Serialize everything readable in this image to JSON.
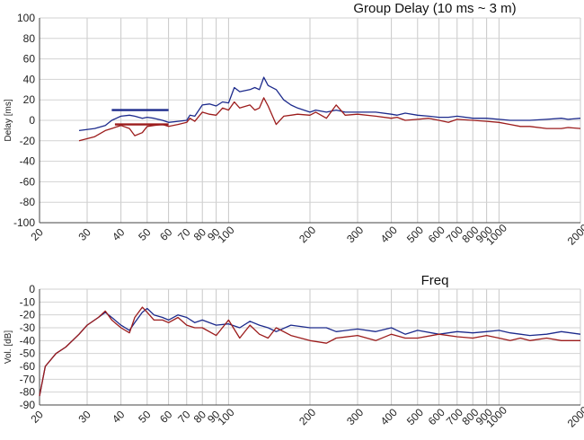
{
  "chart_data": [
    {
      "type": "line",
      "title": "Group Delay (10 ms ~ 3 m)",
      "xlabel": "",
      "ylabel": "Delay [ms]",
      "xscale": "log",
      "xlim": [
        20,
        2000
      ],
      "ylim": [
        -100,
        100
      ],
      "yticks": [
        100,
        80,
        60,
        40,
        20,
        0,
        -20,
        -40,
        -60,
        -80,
        -100
      ],
      "xticks": [
        20,
        30,
        40,
        50,
        60,
        70,
        80,
        90,
        100,
        200,
        300,
        400,
        500,
        600,
        700,
        800,
        900,
        1000,
        2000
      ],
      "grid": true,
      "colors": {
        "blue": "#1c2a8c",
        "red": "#9c1c1c"
      },
      "series": [
        {
          "color": "blue",
          "x": [
            28,
            32,
            35,
            37,
            40,
            43,
            45,
            48,
            50,
            53,
            57,
            60,
            65,
            70,
            72,
            75,
            80,
            85,
            90,
            95,
            100,
            105,
            110,
            120,
            125,
            130,
            135,
            140,
            150,
            160,
            170,
            180,
            200,
            210,
            230,
            250,
            270,
            300,
            350,
            400,
            420,
            450,
            500,
            550,
            600,
            650,
            700,
            800,
            900,
            1000,
            1100,
            1200,
            1300,
            1500,
            1700,
            1800,
            2000
          ],
          "y": [
            -10,
            -8,
            -5,
            0,
            4,
            5,
            4,
            2,
            3,
            2,
            0,
            -2,
            -1,
            0,
            5,
            4,
            15,
            16,
            14,
            18,
            17,
            32,
            28,
            30,
            32,
            30,
            42,
            34,
            30,
            20,
            15,
            12,
            8,
            10,
            8,
            10,
            8,
            8,
            8,
            6,
            5,
            7,
            5,
            4,
            3,
            3,
            4,
            2,
            2,
            1,
            0,
            0,
            0,
            1,
            2,
            1,
            2
          ]
        },
        {
          "color": "blue",
          "x": [
            37,
            60
          ],
          "y": [
            10,
            10
          ]
        },
        {
          "color": "red",
          "x": [
            28,
            32,
            35,
            37,
            40,
            43,
            45,
            48,
            50,
            53,
            57,
            60,
            65,
            70,
            72,
            75,
            80,
            85,
            90,
            95,
            100,
            105,
            110,
            120,
            125,
            130,
            135,
            140,
            150,
            160,
            170,
            180,
            200,
            210,
            230,
            250,
            270,
            300,
            350,
            400,
            420,
            450,
            500,
            550,
            600,
            650,
            700,
            800,
            900,
            1000,
            1100,
            1200,
            1300,
            1500,
            1700,
            1800,
            2000
          ],
          "y": [
            -20,
            -16,
            -10,
            -8,
            -5,
            -8,
            -15,
            -12,
            -6,
            -5,
            -4,
            -6,
            -4,
            -2,
            2,
            -1,
            8,
            6,
            5,
            12,
            10,
            18,
            12,
            15,
            10,
            12,
            22,
            14,
            -4,
            4,
            5,
            6,
            5,
            8,
            2,
            15,
            5,
            6,
            4,
            2,
            3,
            0,
            1,
            2,
            0,
            -2,
            1,
            0,
            -1,
            -2,
            -4,
            -6,
            -6,
            -8,
            -8,
            -7,
            -8
          ]
        },
        {
          "color": "red",
          "x": [
            38,
            60
          ],
          "y": [
            -4,
            -4
          ]
        }
      ]
    },
    {
      "type": "line",
      "title": "Freq",
      "xlabel": "",
      "ylabel": "Vol. [dB]",
      "xscale": "log",
      "xlim": [
        20,
        2000
      ],
      "ylim": [
        -90,
        0
      ],
      "yticks": [
        0,
        -10,
        -20,
        -30,
        -40,
        -50,
        -60,
        -70,
        -80,
        -90
      ],
      "xticks": [
        20,
        30,
        40,
        50,
        60,
        70,
        80,
        90,
        100,
        200,
        300,
        400,
        500,
        600,
        700,
        800,
        900,
        1000,
        2000
      ],
      "grid": true,
      "colors": {
        "blue": "#1c2a8c",
        "red": "#9c1c1c"
      },
      "series": [
        {
          "color": "blue",
          "x": [
            20,
            21,
            23,
            25,
            28,
            30,
            33,
            35,
            37,
            40,
            43,
            45,
            48,
            50,
            53,
            57,
            60,
            65,
            70,
            75,
            80,
            90,
            100,
            110,
            120,
            130,
            140,
            150,
            170,
            200,
            230,
            250,
            300,
            350,
            400,
            450,
            500,
            600,
            700,
            800,
            900,
            1000,
            1100,
            1200,
            1300,
            1500,
            1700,
            2000
          ],
          "y": [
            -83,
            -60,
            -50,
            -45,
            -35,
            -28,
            -22,
            -18,
            -22,
            -28,
            -32,
            -26,
            -18,
            -15,
            -20,
            -22,
            -24,
            -20,
            -22,
            -26,
            -24,
            -28,
            -27,
            -30,
            -25,
            -28,
            -30,
            -33,
            -28,
            -30,
            -30,
            -33,
            -31,
            -33,
            -30,
            -35,
            -32,
            -35,
            -33,
            -34,
            -33,
            -32,
            -34,
            -35,
            -36,
            -35,
            -33,
            -35
          ]
        },
        {
          "color": "red",
          "x": [
            20,
            21,
            23,
            25,
            28,
            30,
            33,
            35,
            37,
            40,
            43,
            45,
            48,
            50,
            53,
            57,
            60,
            65,
            70,
            75,
            80,
            90,
            100,
            110,
            120,
            130,
            140,
            150,
            170,
            200,
            230,
            250,
            300,
            350,
            400,
            450,
            500,
            600,
            700,
            800,
            900,
            1000,
            1100,
            1200,
            1300,
            1500,
            1700,
            2000
          ],
          "y": [
            -83,
            -60,
            -50,
            -45,
            -35,
            -28,
            -22,
            -17,
            -24,
            -30,
            -34,
            -22,
            -14,
            -18,
            -24,
            -24,
            -26,
            -22,
            -28,
            -30,
            -30,
            -36,
            -24,
            -38,
            -28,
            -35,
            -38,
            -30,
            -36,
            -40,
            -42,
            -38,
            -36,
            -40,
            -35,
            -38,
            -38,
            -35,
            -37,
            -38,
            -36,
            -38,
            -40,
            -38,
            -40,
            -38,
            -40,
            -40
          ]
        }
      ]
    }
  ]
}
